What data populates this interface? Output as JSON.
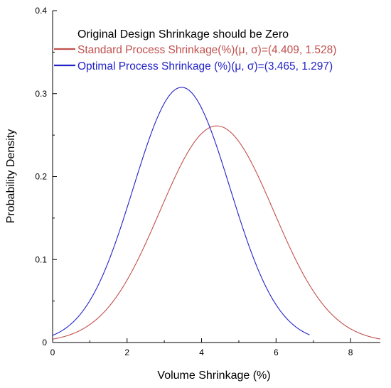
{
  "chart_data": {
    "type": "line",
    "xlabel": "Volume Shrinkage (%)",
    "ylabel": "Probability Density",
    "xlim": [
      0,
      8.8
    ],
    "ylim": [
      0,
      0.4
    ],
    "x_ticks": [
      0,
      2,
      4,
      6,
      8
    ],
    "y_ticks": [
      0,
      0.1,
      0.2,
      0.3,
      0.4
    ],
    "x_tick_labels": [
      "0",
      "2",
      "4",
      "6",
      "8"
    ],
    "y_tick_labels": [
      "0",
      "0.1",
      "0.2",
      "0.3",
      "0.4"
    ],
    "grid": false,
    "legend_position": "top",
    "legend_title": "Original Design Shrinkage should be Zero",
    "series": [
      {
        "name": "Standard Process Shrinkage(%)(μ, σ)=(4.409, 1.528)",
        "color": "#c0504d",
        "mean": 4.409,
        "sd": 1.528,
        "x_range": [
          0,
          8.8
        ],
        "x": [
          0,
          0.5,
          1,
          1.5,
          2,
          2.5,
          3,
          3.5,
          4,
          4.409,
          5,
          5.5,
          6,
          6.5,
          7,
          7.5,
          8,
          8.8
        ],
        "y": [
          0.004,
          0.009,
          0.022,
          0.043,
          0.075,
          0.119,
          0.17,
          0.219,
          0.252,
          0.261,
          0.241,
          0.202,
          0.153,
          0.104,
          0.063,
          0.035,
          0.017,
          0.005
        ]
      },
      {
        "name": "Optimal Process Shrinkage (%)(μ, σ)=(3.465, 1.297)",
        "color": "#2323c8",
        "mean": 3.465,
        "sd": 1.297,
        "x_range": [
          0,
          6.9
        ],
        "x": [
          0,
          0.5,
          1,
          1.5,
          2,
          2.5,
          3,
          3.465,
          4,
          4.5,
          5,
          5.5,
          6,
          6.5,
          6.9
        ],
        "y": [
          0.009,
          0.022,
          0.051,
          0.098,
          0.162,
          0.233,
          0.288,
          0.308,
          0.285,
          0.225,
          0.152,
          0.089,
          0.045,
          0.019,
          0.009
        ]
      }
    ]
  }
}
